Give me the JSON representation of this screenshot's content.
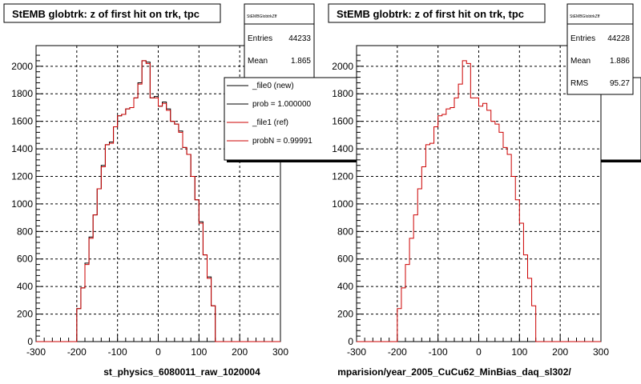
{
  "chart_data": [
    {
      "type": "histogram",
      "title": "StEMB globtrk: z of first hit on trk, tpc",
      "xlabel": "st_physics_6080011_raw_1020004",
      "xlim": [
        -300,
        300
      ],
      "ylim": [
        0,
        2150
      ],
      "x_ticks": [
        "-300",
        "-200",
        "-100",
        "0",
        "100",
        "200",
        "300"
      ],
      "y_ticks": [
        "0",
        "200",
        "400",
        "600",
        "800",
        "1000",
        "1200",
        "1400",
        "1600",
        "1800",
        "2000"
      ],
      "grid": true,
      "stats": {
        "name": "StEMBGlobtrkZff",
        "entries_label": "Entries",
        "entries": "44233",
        "mean_label": "Mean",
        "mean": "1.865"
      },
      "legend": {
        "placement": "top-right",
        "entries": [
          "_file0 (new)",
          "prob = 1.000000",
          "_file1 (ref)",
          "probN = 0.99991"
        ]
      },
      "bin_edges": [
        -300,
        -290,
        -280,
        -270,
        -260,
        -250,
        -240,
        -230,
        -220,
        -210,
        -200,
        -190,
        -180,
        -170,
        -160,
        -150,
        -140,
        -130,
        -120,
        -110,
        -100,
        -90,
        -80,
        -70,
        -60,
        -50,
        -40,
        -30,
        -20,
        -10,
        0,
        10,
        20,
        30,
        40,
        50,
        60,
        70,
        80,
        90,
        100,
        110,
        120,
        130,
        140,
        150,
        160,
        170,
        180,
        190,
        200,
        210,
        220,
        230,
        240,
        250,
        260,
        270,
        280,
        290,
        300
      ],
      "series": [
        {
          "name": "_file0 (new)",
          "color": "#000000",
          "values": [
            0,
            0,
            0,
            0,
            0,
            0,
            0,
            0,
            0,
            0,
            240,
            390,
            570,
            760,
            920,
            1110,
            1280,
            1430,
            1450,
            1560,
            1640,
            1650,
            1690,
            1700,
            1770,
            1880,
            2040,
            2030,
            1770,
            1780,
            1710,
            1740,
            1690,
            1600,
            1580,
            1530,
            1410,
            1360,
            1200,
            1030,
            870,
            630,
            470,
            260,
            0,
            0,
            0,
            0,
            0,
            0,
            0,
            0,
            0,
            0,
            0,
            0,
            0,
            0,
            0,
            0
          ]
        },
        {
          "name": "_file1 (ref)",
          "color": "#cc0000",
          "values": [
            0,
            0,
            0,
            0,
            0,
            0,
            0,
            0,
            0,
            0,
            240,
            390,
            560,
            750,
            920,
            1110,
            1270,
            1430,
            1440,
            1560,
            1640,
            1650,
            1690,
            1700,
            1770,
            1870,
            2040,
            2020,
            1770,
            1770,
            1710,
            1730,
            1680,
            1600,
            1580,
            1520,
            1410,
            1360,
            1200,
            1030,
            860,
            630,
            460,
            260,
            0,
            0,
            0,
            0,
            0,
            0,
            0,
            0,
            0,
            0,
            0,
            0,
            0,
            0,
            0,
            0
          ]
        }
      ]
    },
    {
      "type": "histogram",
      "title": "StEMB globtrk: z of first hit on trk, tpc",
      "xlabel": "mparision/year_2005_CuCu62_MinBias_daq_sl302/",
      "xlim": [
        -300,
        300
      ],
      "ylim": [
        0,
        2150
      ],
      "x_ticks": [
        "-300",
        "-200",
        "-100",
        "0",
        "100",
        "200",
        "300"
      ],
      "y_ticks": [
        "0",
        "200",
        "400",
        "600",
        "800",
        "1000",
        "1200",
        "1400",
        "1600",
        "1800",
        "2000"
      ],
      "grid": true,
      "stats": {
        "name": "StEMBGlobtrkZff",
        "entries_label": "Entries",
        "entries": "44228",
        "mean_label": "Mean",
        "mean": "1.886",
        "rms_label": "RMS",
        "rms": "95.27"
      },
      "bin_edges": [
        -300,
        -290,
        -280,
        -270,
        -260,
        -250,
        -240,
        -230,
        -220,
        -210,
        -200,
        -190,
        -180,
        -170,
        -160,
        -150,
        -140,
        -130,
        -120,
        -110,
        -100,
        -90,
        -80,
        -70,
        -60,
        -50,
        -40,
        -30,
        -20,
        -10,
        0,
        10,
        20,
        30,
        40,
        50,
        60,
        70,
        80,
        90,
        100,
        110,
        120,
        130,
        140,
        150,
        160,
        170,
        180,
        190,
        200,
        210,
        220,
        230,
        240,
        250,
        260,
        270,
        280,
        290,
        300
      ],
      "series": [
        {
          "name": "_file1 (ref)",
          "color": "#cc0000",
          "values": [
            0,
            0,
            0,
            0,
            0,
            0,
            0,
            0,
            0,
            0,
            240,
            390,
            560,
            750,
            920,
            1110,
            1270,
            1430,
            1440,
            1560,
            1640,
            1650,
            1690,
            1700,
            1770,
            1870,
            2040,
            2020,
            1770,
            1770,
            1710,
            1730,
            1680,
            1600,
            1580,
            1520,
            1410,
            1360,
            1200,
            1030,
            860,
            630,
            460,
            260,
            0,
            0,
            0,
            0,
            0,
            0,
            0,
            0,
            0,
            0,
            0,
            0,
            0,
            0,
            0,
            0
          ]
        }
      ]
    }
  ]
}
